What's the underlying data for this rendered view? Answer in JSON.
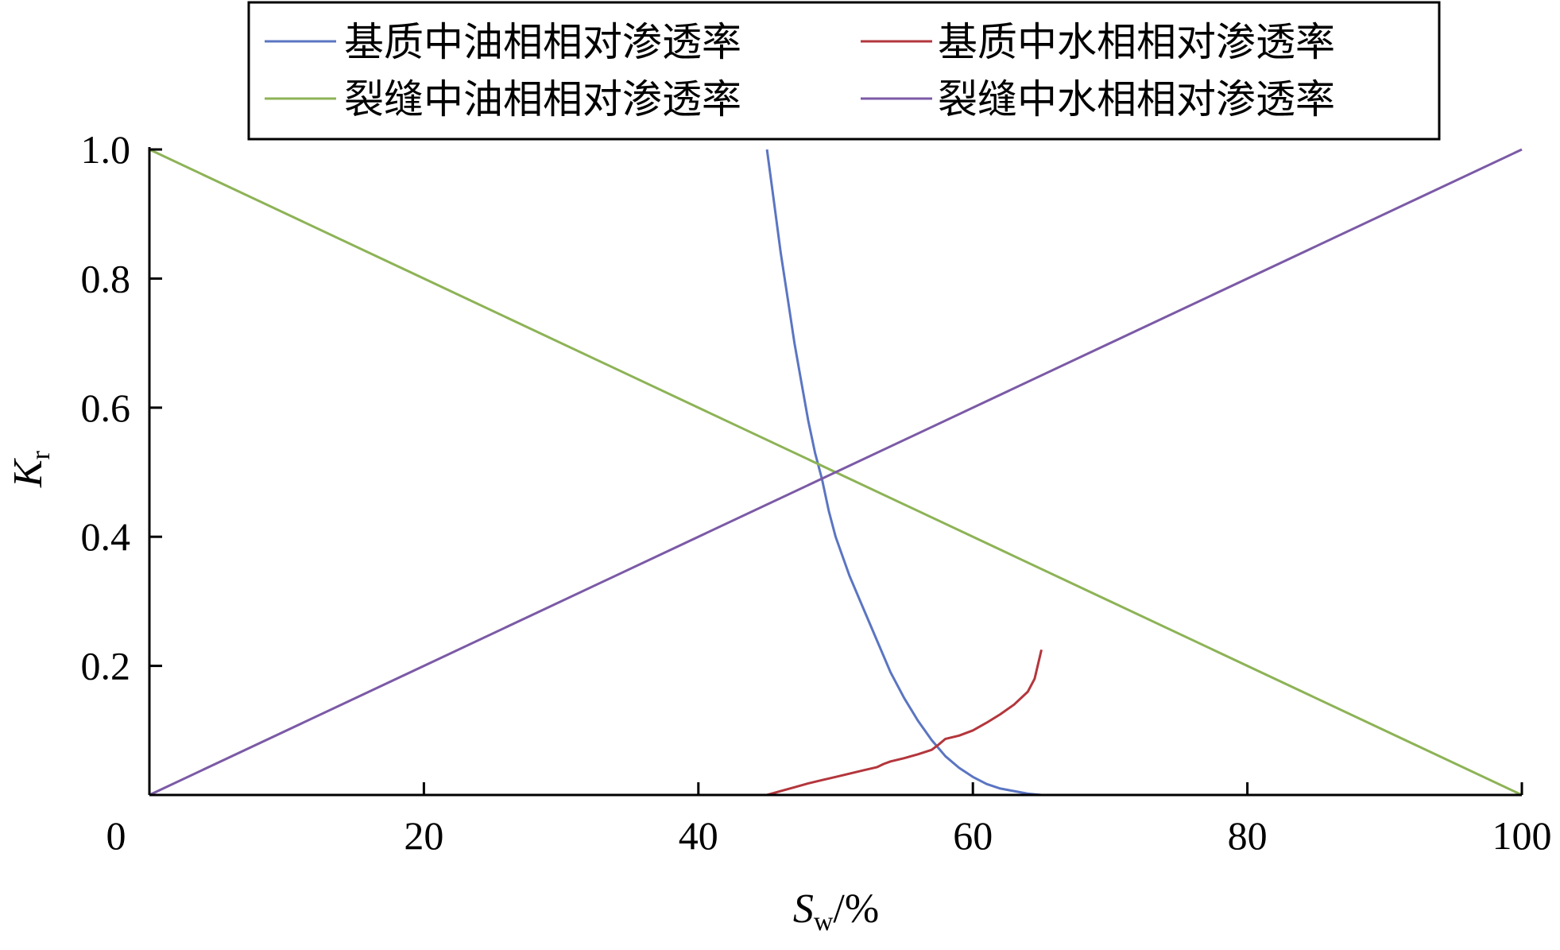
{
  "chart_data": {
    "type": "line",
    "xlabel": {
      "main": "S",
      "sub": "w",
      "suffix": "/%"
    },
    "ylabel": {
      "main": "K",
      "sub": "r"
    },
    "xlim": [
      0,
      100
    ],
    "ylim": [
      0,
      1
    ],
    "xticks": [
      "0",
      "20",
      "40",
      "60",
      "80",
      "100"
    ],
    "xtick_values": [
      0,
      20,
      40,
      60,
      80,
      100
    ],
    "yticks": [
      "0.2",
      "0.4",
      "0.6",
      "0.8",
      "1.0"
    ],
    "ytick_values": [
      0.2,
      0.4,
      0.6,
      0.8,
      1.0
    ],
    "grid": false,
    "legend_position": "top",
    "series": [
      {
        "name": "基质中油相相对渗透率",
        "color": "#5b75c2",
        "x": [
          45.0,
          45.5,
          46.0,
          46.5,
          47.0,
          47.5,
          48.0,
          48.5,
          49.0,
          49.5,
          50.0,
          51.0,
          52.0,
          53.0,
          54.0,
          55.0,
          56.0,
          57.0,
          58.0,
          59.0,
          60.0,
          61.0,
          62.0,
          63.0,
          64.0,
          65.0
        ],
        "y": [
          1.0,
          0.92,
          0.84,
          0.77,
          0.7,
          0.64,
          0.58,
          0.53,
          0.49,
          0.44,
          0.4,
          0.34,
          0.29,
          0.24,
          0.19,
          0.15,
          0.115,
          0.085,
          0.06,
          0.042,
          0.028,
          0.017,
          0.01,
          0.006,
          0.002,
          0.0
        ]
      },
      {
        "name": "基质中水相相对渗透率",
        "color": "#b3363c",
        "x": [
          45.0,
          46.0,
          47.0,
          48.0,
          49.0,
          50.0,
          51.0,
          52.0,
          53.0,
          53.5,
          54.0,
          55.0,
          56.0,
          57.0,
          57.5,
          58.0,
          59.0,
          60.0,
          61.0,
          62.0,
          63.0,
          64.0,
          64.5,
          65.0
        ],
        "y": [
          0.0,
          0.006,
          0.012,
          0.018,
          0.023,
          0.028,
          0.033,
          0.038,
          0.043,
          0.048,
          0.052,
          0.057,
          0.063,
          0.07,
          0.078,
          0.087,
          0.092,
          0.1,
          0.112,
          0.125,
          0.14,
          0.16,
          0.18,
          0.225
        ]
      },
      {
        "name": "裂缝中油相相对渗透率",
        "color": "#8db356",
        "x": [
          0,
          100
        ],
        "y": [
          1.0,
          0.0
        ]
      },
      {
        "name": "裂缝中水相相对渗透率",
        "color": "#7b5aa6",
        "x": [
          0,
          100
        ],
        "y": [
          0.0,
          1.0
        ]
      }
    ]
  }
}
